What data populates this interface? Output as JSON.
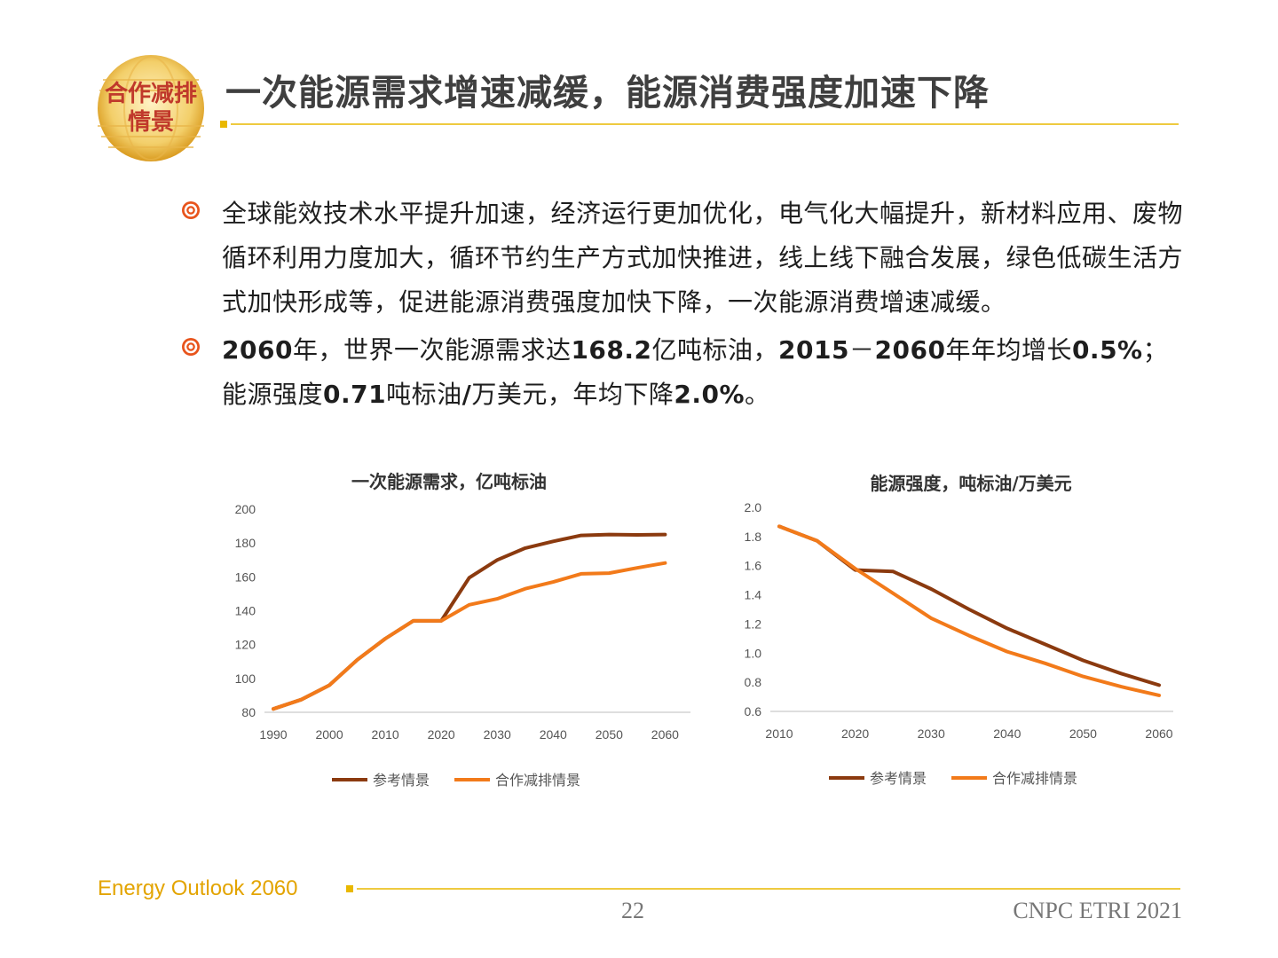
{
  "header": {
    "logo_text_line1": "合作减排",
    "logo_text_line2": "情景",
    "title": "一次能源需求增速减缓，能源消费强度加速下降"
  },
  "bullets": [
    {
      "segments": [
        {
          "text": "全球能效技术水平提升加速，经济运行更加优化，电气化大幅提升，新材料应用、废物循环利用力度加大，循环节约生产方式加快推进，线上线下融合发展，绿色低碳生活方式加快形成等，促进能源消费强度加快下降，一次能源消费增速减缓。",
          "bold": false
        }
      ]
    },
    {
      "segments": [
        {
          "text": "2060",
          "bold": true
        },
        {
          "text": "年，世界一次能源需求达",
          "bold": false
        },
        {
          "text": "168.2",
          "bold": true
        },
        {
          "text": "亿吨标油，",
          "bold": false
        },
        {
          "text": "2015",
          "bold": true
        },
        {
          "text": "－",
          "bold": false
        },
        {
          "text": "2060",
          "bold": true
        },
        {
          "text": "年年均增长",
          "bold": false
        },
        {
          "text": "0.5%",
          "bold": true
        },
        {
          "text": "；能源强度",
          "bold": false
        },
        {
          "text": "0.71",
          "bold": true
        },
        {
          "text": "吨标油",
          "bold": false
        },
        {
          "text": "/",
          "bold": true
        },
        {
          "text": "万美元，年均下降",
          "bold": false
        },
        {
          "text": "2.0%",
          "bold": true
        },
        {
          "text": "。",
          "bold": false
        }
      ]
    }
  ],
  "colors": {
    "reference": "#8b3a0f",
    "cooperative": "#f27a1a",
    "accent_gold": "#e9b800",
    "bullet_icon": "#e8541c"
  },
  "chart_data": [
    {
      "type": "line",
      "title": "一次能源需求，亿吨标油",
      "xlabel": "",
      "ylabel": "",
      "xlim": [
        1990,
        2062
      ],
      "ylim": [
        80,
        200
      ],
      "yticks": [
        80,
        100,
        120,
        140,
        160,
        180,
        200
      ],
      "xticks": [
        1990,
        2000,
        2010,
        2020,
        2030,
        2040,
        2050,
        2060
      ],
      "grid": false,
      "legend": "bottom",
      "series": [
        {
          "name": "参考情景",
          "color_key": "reference",
          "x": [
            1990,
            1995,
            2000,
            2005,
            2010,
            2015,
            2020,
            2025,
            2030,
            2035,
            2040,
            2045,
            2050,
            2055,
            2060
          ],
          "values": [
            82,
            87.5,
            96,
            111,
            123.5,
            134,
            134,
            159.5,
            170,
            177,
            181,
            184.5,
            185,
            184.8,
            185
          ]
        },
        {
          "name": "合作减排情景",
          "color_key": "cooperative",
          "x": [
            1990,
            1995,
            2000,
            2005,
            2010,
            2015,
            2020,
            2025,
            2030,
            2035,
            2040,
            2045,
            2050,
            2055,
            2060
          ],
          "values": [
            82,
            87.5,
            96,
            111,
            123.5,
            134,
            134,
            143.5,
            147,
            153,
            157,
            161.8,
            162.2,
            165.3,
            168.2
          ]
        }
      ]
    },
    {
      "type": "line",
      "title": "能源强度，吨标油/万美元",
      "xlabel": "",
      "ylabel": "",
      "xlim": [
        2010,
        2060
      ],
      "ylim": [
        0.6,
        2.0
      ],
      "yticks": [
        "0.6",
        "0.8",
        "1.0",
        "1.2",
        "1.4",
        "1.6",
        "1.8",
        "2.0"
      ],
      "xticks": [
        2010,
        2020,
        2030,
        2040,
        2050,
        2060
      ],
      "grid": false,
      "legend": "bottom",
      "series": [
        {
          "name": "参考情景",
          "color_key": "reference",
          "x": [
            2010,
            2015,
            2020,
            2025,
            2030,
            2035,
            2040,
            2045,
            2050,
            2055,
            2060
          ],
          "values": [
            1.87,
            1.77,
            1.57,
            1.56,
            1.44,
            1.3,
            1.17,
            1.06,
            0.95,
            0.86,
            0.78
          ]
        },
        {
          "name": "合作减排情景",
          "color_key": "cooperative",
          "x": [
            2010,
            2015,
            2020,
            2025,
            2030,
            2035,
            2040,
            2045,
            2050,
            2055,
            2060
          ],
          "values": [
            1.87,
            1.77,
            1.58,
            1.41,
            1.24,
            1.12,
            1.01,
            0.93,
            0.84,
            0.77,
            0.71
          ]
        }
      ]
    }
  ],
  "footer": {
    "brand": "Energy Outlook 2060",
    "page_number": "22",
    "copyright": "CNPC ETRI 2021"
  }
}
